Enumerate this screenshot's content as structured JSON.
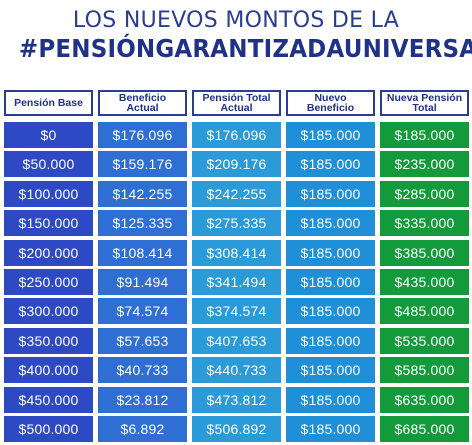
{
  "title": {
    "line1": "LOS NUEVOS MONTOS DE LA",
    "line2": "#PENSIÓNGARANTIZADAUNIVERSAL"
  },
  "headers": [
    "Pensión Base",
    "Beneficio Actual",
    "Pensión Total Actual",
    "Nuevo Beneficio",
    "Nueva Pensión Total"
  ],
  "columns": [
    [
      "$0",
      "$50.000",
      "$100.000",
      "$150.000",
      "$200.000",
      "$250.000",
      "$300.000",
      "$350.000",
      "$400.000",
      "$450.000",
      "$500.000"
    ],
    [
      "$176.096",
      "$159.176",
      "$142.255",
      "$125.335",
      "$108.414",
      "$91.494",
      "$74.574",
      "$57.653",
      "$40.733",
      "$23.812",
      "$6.892"
    ],
    [
      "$176.096",
      "$209.176",
      "$242.255",
      "$275.335",
      "$308.414",
      "$341.494",
      "$374.574",
      "$407.653",
      "$440.733",
      "$473.812",
      "$506.892"
    ],
    [
      "$185.000",
      "$185.000",
      "$185.000",
      "$185.000",
      "$185.000",
      "$185.000",
      "$185.000",
      "$185.000",
      "$185.000",
      "$185.000",
      "$185.000"
    ],
    [
      "$185.000",
      "$235.000",
      "$285.000",
      "$335.000",
      "$385.000",
      "$435.000",
      "$485.000",
      "$535.000",
      "$585.000",
      "$635.000",
      "$685.000"
    ]
  ],
  "colors": {
    "title": "#2a3e8f",
    "col1": "#2d49c3",
    "col2": "#2f6fd4",
    "col3": "#2a9ad8",
    "col4": "#1f8fd8",
    "col5": "#139a3a"
  }
}
